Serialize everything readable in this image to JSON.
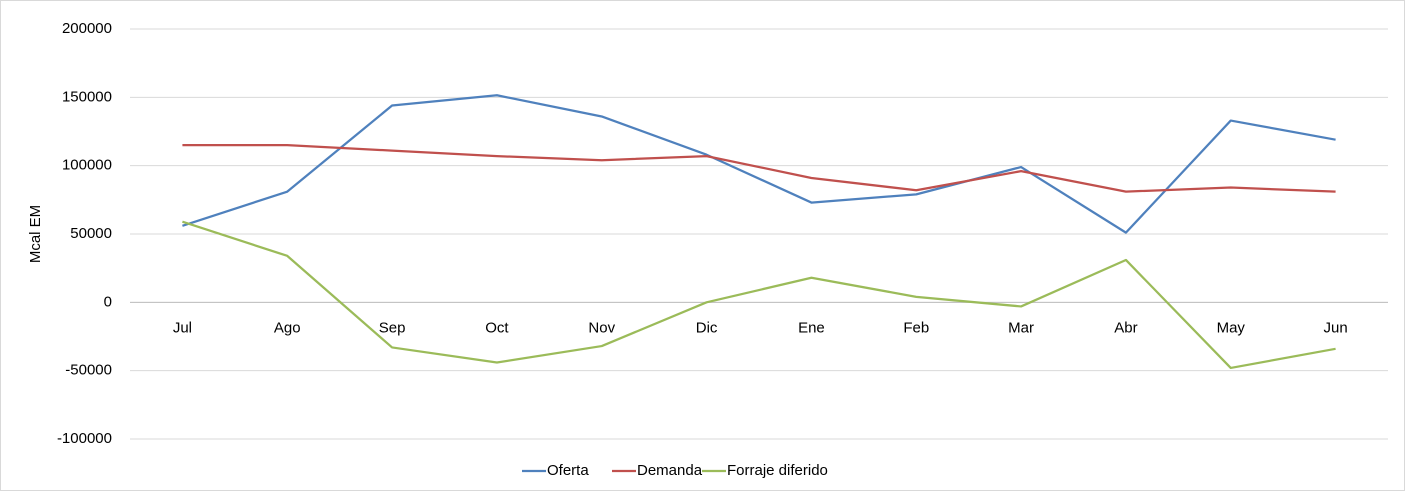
{
  "chart_data": {
    "type": "line",
    "y_axis_label": "Mcal EM",
    "categories": [
      "Jul",
      "Ago",
      "Sep",
      "Oct",
      "Nov",
      "Dic",
      "Ene",
      "Feb",
      "Mar",
      "Abr",
      "May",
      "Jun"
    ],
    "series": [
      {
        "name": "Oferta",
        "color": "#4f81bd",
        "values": [
          56000,
          81000,
          144000,
          151500,
          136000,
          108000,
          73000,
          79000,
          99000,
          51000,
          133000,
          119000
        ]
      },
      {
        "name": "Demanda",
        "color": "#c0504d",
        "values": [
          115000,
          115000,
          111000,
          107000,
          104000,
          107000,
          91000,
          82000,
          96000,
          81000,
          84000,
          81000
        ]
      },
      {
        "name": "Forraje diferido",
        "color": "#9bbb59",
        "values": [
          59000,
          34000,
          -33000,
          -44000,
          -32000,
          0,
          18000,
          4000,
          -3000,
          31000,
          -48000,
          -34000
        ]
      }
    ],
    "ylim": [
      -100000,
      200000
    ],
    "yticks": [
      -100000,
      -50000,
      0,
      50000,
      100000,
      150000,
      200000
    ],
    "grid": true,
    "legend": "bottom"
  }
}
